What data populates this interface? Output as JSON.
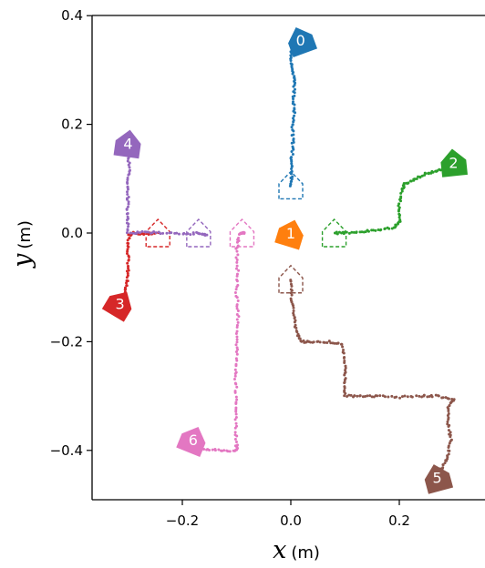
{
  "chart_data": {
    "type": "scatter",
    "title": "",
    "xlabel_var": "x",
    "xlabel_unit": "(m)",
    "ylabel_var": "y",
    "ylabel_unit": "(m)",
    "xlim": [
      -0.365,
      0.355
    ],
    "ylim": [
      -0.49,
      0.4
    ],
    "xticks": [
      -0.2,
      0.0,
      0.2
    ],
    "xtick_labels": [
      "−0.2",
      "0.0",
      "0.2"
    ],
    "yticks": [
      0.4,
      0.2,
      0.0,
      -0.2,
      -0.4
    ],
    "ytick_labels": [
      "0.4",
      "0.2",
      "0.0",
      "−0.2",
      "−0.4"
    ],
    "grid": false,
    "series": [
      {
        "label": "0",
        "color": "#1f77b4",
        "start": [
          0.0,
          0.088
        ],
        "end": [
          0.018,
          0.355
        ],
        "path": [
          [
            0.0,
            0.088
          ],
          [
            0.002,
            0.105
          ],
          [
            0.001,
            0.13
          ],
          [
            0.004,
            0.16
          ],
          [
            0.003,
            0.19
          ],
          [
            0.006,
            0.22
          ],
          [
            0.005,
            0.25
          ],
          [
            0.007,
            0.28
          ],
          [
            0.004,
            0.3
          ],
          [
            0.0,
            0.325
          ],
          [
            0.003,
            0.345
          ],
          [
            0.01,
            0.355
          ]
        ]
      },
      {
        "label": "1",
        "color": "#ff7f0e",
        "start": [
          0.0,
          0.0
        ],
        "end": [
          0.0,
          0.0
        ],
        "path": []
      },
      {
        "label": "2",
        "color": "#2ca02c",
        "start": [
          0.08,
          0.0
        ],
        "end": [
          0.3,
          0.13
        ],
        "path": [
          [
            0.08,
            0.0
          ],
          [
            0.1,
            0.0
          ],
          [
            0.13,
            0.003
          ],
          [
            0.16,
            0.005
          ],
          [
            0.19,
            0.01
          ],
          [
            0.2,
            0.02
          ],
          [
            0.2,
            0.05
          ],
          [
            0.205,
            0.08
          ],
          [
            0.21,
            0.09
          ],
          [
            0.23,
            0.1
          ],
          [
            0.25,
            0.11
          ],
          [
            0.265,
            0.113
          ],
          [
            0.285,
            0.12
          ],
          [
            0.3,
            0.13
          ]
        ]
      },
      {
        "label": "3",
        "color": "#d62728",
        "start": [
          -0.245,
          0.0
        ],
        "end": [
          -0.315,
          -0.13
        ],
        "path": [
          [
            -0.245,
            0.0
          ],
          [
            -0.27,
            -0.002
          ],
          [
            -0.29,
            0.0
          ],
          [
            -0.298,
            -0.005
          ],
          [
            -0.3,
            -0.03
          ],
          [
            -0.3,
            -0.06
          ],
          [
            -0.302,
            -0.09
          ],
          [
            -0.307,
            -0.11
          ],
          [
            -0.315,
            -0.13
          ]
        ]
      },
      {
        "label": "4",
        "color": "#9467bd",
        "start": [
          -0.17,
          0.0
        ],
        "end": [
          -0.3,
          0.165
        ],
        "path": [
          [
            -0.155,
            -0.005
          ],
          [
            -0.17,
            0.0
          ],
          [
            -0.2,
            -0.002
          ],
          [
            -0.24,
            0.0
          ],
          [
            -0.27,
            0.002
          ],
          [
            -0.3,
            0.0
          ],
          [
            -0.302,
            0.03
          ],
          [
            -0.3,
            0.06
          ],
          [
            -0.3,
            0.09
          ],
          [
            -0.298,
            0.12
          ],
          [
            -0.3,
            0.15
          ],
          [
            -0.305,
            0.165
          ]
        ]
      },
      {
        "label": "5",
        "color": "#8c564b",
        "start": [
          0.0,
          -0.085
        ],
        "end": [
          0.27,
          -0.45
        ],
        "path": [
          [
            0.0,
            -0.085
          ],
          [
            0.002,
            -0.12
          ],
          [
            0.005,
            -0.15
          ],
          [
            0.01,
            -0.18
          ],
          [
            0.02,
            -0.2
          ],
          [
            0.04,
            -0.2
          ],
          [
            0.07,
            -0.2
          ],
          [
            0.095,
            -0.205
          ],
          [
            0.1,
            -0.24
          ],
          [
            0.1,
            -0.27
          ],
          [
            0.1,
            -0.3
          ],
          [
            0.13,
            -0.3
          ],
          [
            0.16,
            -0.3
          ],
          [
            0.2,
            -0.302
          ],
          [
            0.24,
            -0.3
          ],
          [
            0.27,
            -0.3
          ],
          [
            0.3,
            -0.305
          ],
          [
            0.29,
            -0.32
          ],
          [
            0.29,
            -0.35
          ],
          [
            0.295,
            -0.38
          ],
          [
            0.29,
            -0.41
          ],
          [
            0.28,
            -0.43
          ],
          [
            0.27,
            -0.45
          ]
        ]
      },
      {
        "label": "6",
        "color": "#e377c2",
        "start": [
          -0.09,
          0.0
        ],
        "end": [
          -0.18,
          -0.38
        ],
        "path": [
          [
            -0.085,
            0.0
          ],
          [
            -0.095,
            0.0
          ],
          [
            -0.1,
            -0.03
          ],
          [
            -0.098,
            -0.07
          ],
          [
            -0.1,
            -0.11
          ],
          [
            -0.097,
            -0.15
          ],
          [
            -0.1,
            -0.19
          ],
          [
            -0.1,
            -0.23
          ],
          [
            -0.102,
            -0.27
          ],
          [
            -0.1,
            -0.31
          ],
          [
            -0.102,
            -0.35
          ],
          [
            -0.1,
            -0.39
          ],
          [
            -0.1,
            -0.4
          ],
          [
            -0.13,
            -0.4
          ],
          [
            -0.16,
            -0.398
          ],
          [
            -0.18,
            -0.39
          ]
        ]
      }
    ]
  }
}
